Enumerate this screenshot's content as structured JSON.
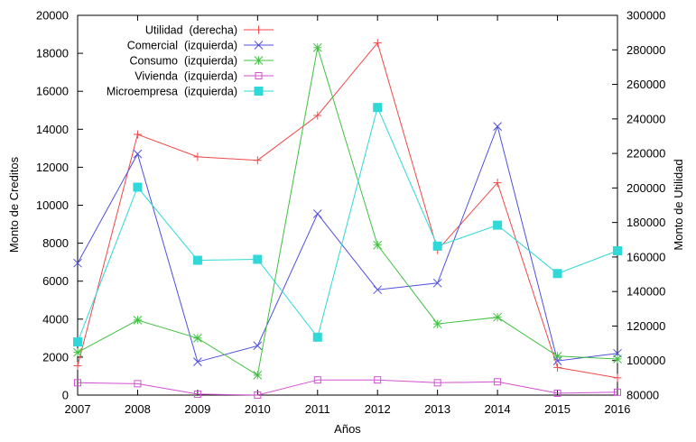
{
  "chart_data": {
    "type": "line",
    "x": [
      2007,
      2008,
      2009,
      2010,
      2011,
      2012,
      2013,
      2014,
      2015,
      2016
    ],
    "xlabel": "Años",
    "ylabel_left": "Monto de Creditos",
    "ylabel_right": "Monto de Utilidad",
    "ylim_left": [
      0,
      20000
    ],
    "ylim_right": [
      80000,
      300000
    ],
    "yticks_left": [
      0,
      2000,
      4000,
      6000,
      8000,
      10000,
      12000,
      14000,
      16000,
      18000,
      20000
    ],
    "yticks_right": [
      80000,
      100000,
      120000,
      140000,
      160000,
      180000,
      200000,
      220000,
      240000,
      260000,
      280000,
      300000
    ],
    "grid": false,
    "legend_position": "top-left",
    "series": [
      {
        "name": "Utilidad  (derecha)",
        "axis": "right",
        "color": "#f04848",
        "marker": "plus",
        "values": [
          97000,
          231000,
          218000,
          216000,
          242000,
          284000,
          164000,
          203000,
          96000,
          90000
        ]
      },
      {
        "name": "Comercial  (izquierda)",
        "axis": "left",
        "color": "#5050e0",
        "marker": "cross",
        "values": [
          6950,
          12700,
          1750,
          2600,
          9550,
          5550,
          5900,
          14150,
          1800,
          2200
        ]
      },
      {
        "name": "Consumo  (izquierda)",
        "axis": "left",
        "color": "#40c040",
        "marker": "star",
        "values": [
          2250,
          3950,
          3000,
          1050,
          18300,
          7900,
          3750,
          4100,
          2050,
          1900
        ]
      },
      {
        "name": "Vivienda  (izquierda)",
        "axis": "left",
        "color": "#d050d0",
        "marker": "square-open",
        "values": [
          650,
          600,
          50,
          0,
          800,
          800,
          650,
          700,
          100,
          150
        ]
      },
      {
        "name": "Microempresa  (izquierda)",
        "axis": "left",
        "color": "#30d8d8",
        "marker": "square-filled",
        "values": [
          2800,
          10950,
          7100,
          7150,
          3050,
          15150,
          7850,
          8950,
          6400,
          7600
        ]
      }
    ]
  }
}
